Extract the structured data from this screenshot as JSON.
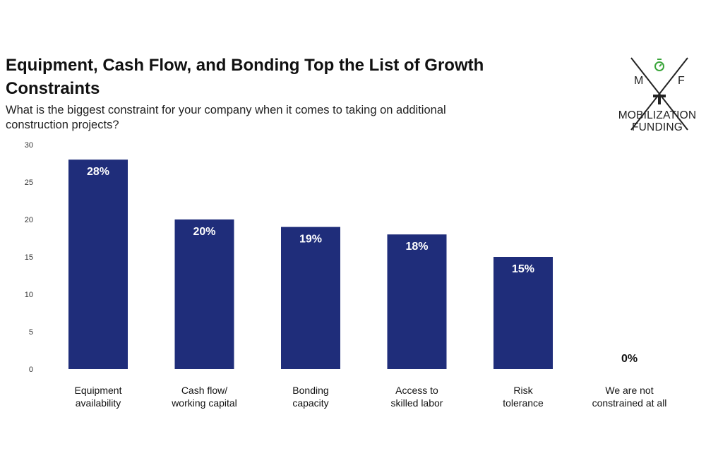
{
  "chart_data": {
    "type": "bar",
    "title": "Equipment, Cash Flow, and Bonding Top the List of Growth Constraints",
    "subtitle": "What is the biggest constraint for your company when it comes to taking on additional construction projects?",
    "categories": [
      [
        "Equipment",
        "availability"
      ],
      [
        "Cash flow/",
        "working capital"
      ],
      [
        "Bonding",
        "capacity"
      ],
      [
        "Access to",
        "skilled labor"
      ],
      [
        "Risk",
        "tolerance"
      ],
      [
        "We are not",
        "constrained at all"
      ]
    ],
    "values": [
      28,
      20,
      19,
      18,
      15,
      0
    ],
    "data_labels": [
      "28%",
      "20%",
      "19%",
      "18%",
      "15%",
      "0%"
    ],
    "y_ticks": [
      "0",
      "5",
      "10",
      "15",
      "20",
      "25",
      "30"
    ],
    "ylim": [
      0,
      30
    ],
    "grid": false,
    "xlabel": "",
    "ylabel": "",
    "colors": {
      "bar": "#1f2d7a",
      "bar_label": "#ffffff",
      "outside_label": "#111111"
    }
  },
  "logo": {
    "letter_left": "M",
    "letter_right": "F",
    "line1": "MOBILIZATION",
    "line2": "FUNDING",
    "accent_color": "#3aa53a"
  }
}
